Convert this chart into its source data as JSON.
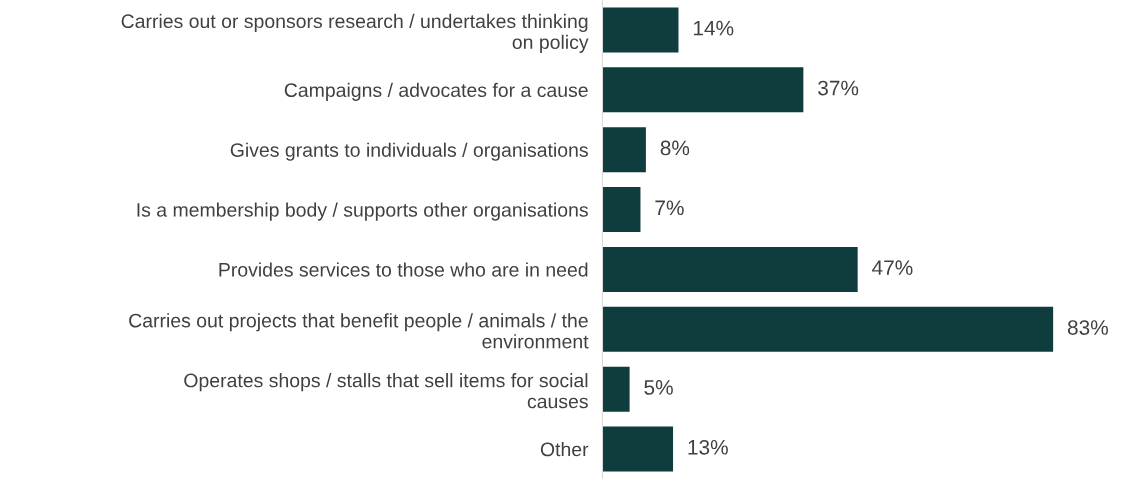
{
  "chart_data": {
    "type": "bar",
    "orientation": "horizontal",
    "categories": [
      "Carries out or sponsors research / undertakes thinking\non policy",
      "Campaigns / advocates for a cause",
      "Gives grants to individuals / organisations",
      "Is a membership body / supports other organisations",
      "Provides services to those who are in need",
      "Carries out projects that benefit people / animals / the\nenvironment",
      "Operates shops / stalls that sell items for social\ncauses",
      "Other"
    ],
    "values": [
      14,
      37,
      8,
      7,
      47,
      83,
      5,
      13
    ],
    "value_labels": [
      "14%",
      "37%",
      "8%",
      "7%",
      "47%",
      "83%",
      "5%",
      "13%"
    ],
    "color": "#0f3d3e",
    "grid": false,
    "legend": false
  }
}
